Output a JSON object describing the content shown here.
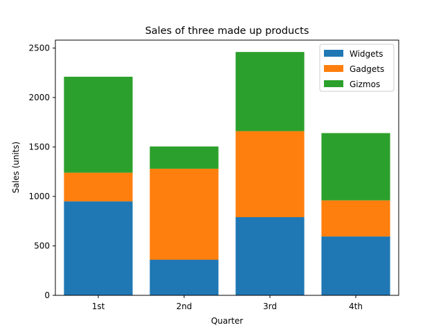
{
  "chart_data": {
    "type": "bar",
    "stacked": true,
    "title": "Sales of three made up products",
    "xlabel": "Quarter",
    "ylabel": "Sales (units)",
    "categories": [
      "1st",
      "2nd",
      "3rd",
      "4th"
    ],
    "ylim": [
      0,
      2580
    ],
    "yticks": [
      0,
      500,
      1000,
      1500,
      2000,
      2500
    ],
    "grid": false,
    "legend_position": "top-right",
    "series": [
      {
        "name": "Widgets",
        "color": "#1f77b4",
        "values": [
          950,
          360,
          790,
          595
        ]
      },
      {
        "name": "Gadgets",
        "color": "#ff7f0e",
        "values": [
          290,
          920,
          870,
          365
        ]
      },
      {
        "name": "Gizmos",
        "color": "#2ca02c",
        "values": [
          970,
          225,
          800,
          680
        ]
      }
    ]
  }
}
